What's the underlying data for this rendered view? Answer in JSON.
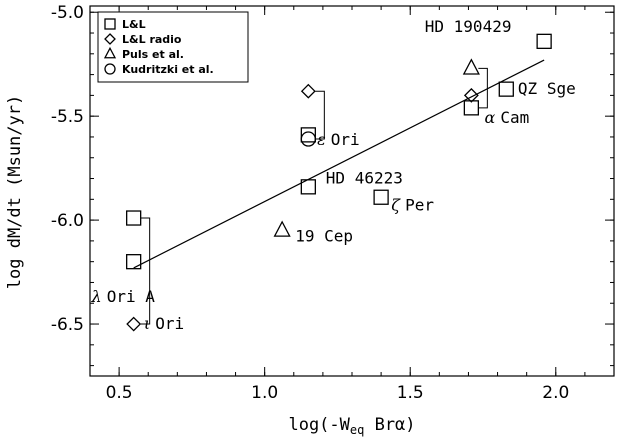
{
  "chart_data": {
    "type": "scatter",
    "xlabel": "log(-W",
    "xlabel_sub": "eq",
    "xlabel_tail": " Brα)",
    "ylabel": "log dM/dt (Msun/yr)",
    "xlim": [
      0.4,
      2.2
    ],
    "ylim": [
      -6.75,
      -4.97
    ],
    "xticks": [
      0.5,
      1.0,
      1.5,
      2.0
    ],
    "xtick_labels": [
      "0.5",
      "1.0",
      "1.5",
      "2.0"
    ],
    "yticks": [
      -5.0,
      -5.5,
      -6.0,
      -6.5
    ],
    "ytick_labels": [
      "-5.0",
      "-5.5",
      "-6.0",
      "-6.5"
    ],
    "grid": false,
    "legend_position": "top-left",
    "series": [
      {
        "name": "L&L",
        "marker": "square",
        "points": [
          {
            "x": 1.96,
            "y": -5.14
          },
          {
            "x": 1.83,
            "y": -5.37
          },
          {
            "x": 1.71,
            "y": -5.46
          },
          {
            "x": 1.15,
            "y": -5.59
          },
          {
            "x": 1.15,
            "y": -5.84
          },
          {
            "x": 1.4,
            "y": -5.89
          },
          {
            "x": 0.55,
            "y": -5.99
          },
          {
            "x": 0.55,
            "y": -6.2
          }
        ]
      },
      {
        "name": "L&L radio",
        "marker": "diamond",
        "points": [
          {
            "x": 1.15,
            "y": -5.38
          },
          {
            "x": 1.71,
            "y": -5.4
          },
          {
            "x": 0.55,
            "y": -6.5
          }
        ]
      },
      {
        "name": "Puls et al.",
        "marker": "triangle",
        "points": [
          {
            "x": 1.71,
            "y": -5.27
          },
          {
            "x": 1.06,
            "y": -6.05
          }
        ]
      },
      {
        "name": "Kudritzki et al.",
        "marker": "circle",
        "points": [
          {
            "x": 1.15,
            "y": -5.61
          }
        ]
      }
    ],
    "fit_line": {
      "x": [
        0.55,
        1.96
      ],
      "y": [
        -6.23,
        -5.23
      ]
    },
    "connectors": [
      {
        "x": 0.55,
        "y_top": -5.99,
        "y_bottom": -6.5
      },
      {
        "x": 1.15,
        "y_top": -5.38,
        "y_bottom": -5.61
      },
      {
        "x": 1.71,
        "y_top": -5.27,
        "y_bottom": -5.46
      }
    ],
    "annotations": [
      {
        "text": "HD 190429",
        "x": 1.55,
        "y": -5.07,
        "anchor": "start"
      },
      {
        "text": "QZ Sge",
        "x": 1.87,
        "y": -5.37,
        "anchor": "start"
      },
      {
        "text": "Cam",
        "greek": "α",
        "x": 1.755,
        "y": -5.51,
        "anchor": "start"
      },
      {
        "text": "Ori",
        "greek": "ε",
        "x": 1.18,
        "y": -5.615,
        "anchor": "start"
      },
      {
        "text": "HD 46223",
        "x": 1.21,
        "y": -5.8,
        "anchor": "start"
      },
      {
        "text": "Per",
        "greek": "ζ",
        "x": 1.435,
        "y": -5.93,
        "anchor": "start"
      },
      {
        "text": "19 Cep",
        "x": 1.105,
        "y": -6.08,
        "anchor": "start"
      },
      {
        "text": "Ori A",
        "greek": "λ",
        "x": 0.405,
        "y": -6.37,
        "anchor": "start"
      },
      {
        "text": "Ori",
        "greek": "ι",
        "x": 0.585,
        "y": -6.5,
        "anchor": "start"
      }
    ]
  }
}
